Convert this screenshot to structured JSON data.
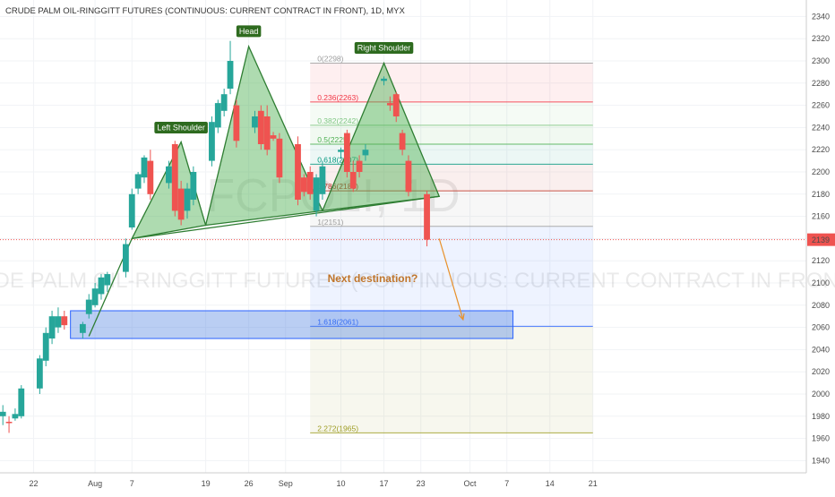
{
  "title": "CRUDE PALM OIL-RINGGITT FUTURES (CONTINUOUS: CURRENT CONTRACT IN FRONT), 1D, MYX",
  "watermark": {
    "symbol": "FCPO1!, 1D",
    "name": "CRUDE PALM OIL-RINGGITT FUTURES (CONTINUOUS: CURRENT CONTRACT IN FRONT)"
  },
  "annotations": {
    "head": "Head",
    "left_shoulder": "Left Shoulder",
    "right_shoulder": "Right Shoulder",
    "next_destination": "Next destination?"
  },
  "colors": {
    "up": "#26a69a",
    "down": "#ef5350",
    "pattern_fill": "#4caf50",
    "tag_bg": "#2e6b1f",
    "target_box": "#4a7ee0",
    "arrow": "#e8912a",
    "last_price_bg": "#ef5350"
  },
  "chart_data": {
    "type": "candlestick",
    "title": "CRUDE PALM OIL-RINGGITT FUTURES (CONTINUOUS: CURRENT CONTRACT IN FRONT), 1D, MYX",
    "symbol": "FCPO1!",
    "interval": "1D",
    "exchange": "MYX",
    "ylim": [
      1930,
      2350
    ],
    "y_ticks": [
      1940,
      1960,
      1980,
      2000,
      2020,
      2040,
      2060,
      2080,
      2100,
      2120,
      2140,
      2160,
      2180,
      2200,
      2220,
      2240,
      2260,
      2280,
      2300,
      2320,
      2340
    ],
    "x_ticks": [
      {
        "label": "22",
        "date": "2018-07-22"
      },
      {
        "label": "Aug",
        "date": "2018-08-01"
      },
      {
        "label": "7",
        "date": "2018-08-07"
      },
      {
        "label": "19",
        "date": "2018-08-19"
      },
      {
        "label": "26",
        "date": "2018-08-26"
      },
      {
        "label": "Sep",
        "date": "2018-09-01"
      },
      {
        "label": "10",
        "date": "2018-09-10"
      },
      {
        "label": "17",
        "date": "2018-09-17"
      },
      {
        "label": "23",
        "date": "2018-09-23"
      },
      {
        "label": "Oct",
        "date": "2018-10-01"
      },
      {
        "label": "7",
        "date": "2018-10-07"
      },
      {
        "label": "14",
        "date": "2018-10-14"
      },
      {
        "label": "21",
        "date": "2018-10-21"
      }
    ],
    "last_price": 2139,
    "candles": [
      {
        "date": "2018-07-17",
        "open": 1980,
        "high": 1990,
        "low": 1972,
        "close": 1984
      },
      {
        "date": "2018-07-18",
        "open": 1975,
        "high": 1980,
        "low": 1965,
        "close": 1974
      },
      {
        "date": "2018-07-19",
        "open": 1978,
        "high": 1987,
        "low": 1976,
        "close": 1982
      },
      {
        "date": "2018-07-20",
        "open": 1980,
        "high": 2008,
        "low": 1978,
        "close": 2005
      },
      {
        "date": "2018-07-23",
        "open": 2005,
        "high": 2035,
        "low": 2000,
        "close": 2032
      },
      {
        "date": "2018-07-24",
        "open": 2030,
        "high": 2060,
        "low": 2025,
        "close": 2055
      },
      {
        "date": "2018-07-25",
        "open": 2050,
        "high": 2075,
        "low": 2045,
        "close": 2070
      },
      {
        "date": "2018-07-26",
        "open": 2060,
        "high": 2078,
        "low": 2055,
        "close": 2070
      },
      {
        "date": "2018-07-27",
        "open": 2070,
        "high": 2075,
        "low": 2058,
        "close": 2062
      },
      {
        "date": "2018-07-30",
        "open": 2055,
        "high": 2065,
        "low": 2050,
        "close": 2063
      },
      {
        "date": "2018-07-31",
        "open": 2072,
        "high": 2090,
        "low": 2068,
        "close": 2085
      },
      {
        "date": "2018-08-01",
        "open": 2080,
        "high": 2100,
        "low": 2078,
        "close": 2095
      },
      {
        "date": "2018-08-02",
        "open": 2090,
        "high": 2108,
        "low": 2085,
        "close": 2105
      },
      {
        "date": "2018-08-03",
        "open": 2098,
        "high": 2110,
        "low": 2092,
        "close": 2108
      },
      {
        "date": "2018-08-06",
        "open": 2110,
        "high": 2140,
        "low": 2105,
        "close": 2135
      },
      {
        "date": "2018-08-07",
        "open": 2150,
        "high": 2185,
        "low": 2148,
        "close": 2180
      },
      {
        "date": "2018-08-08",
        "open": 2185,
        "high": 2200,
        "low": 2180,
        "close": 2198
      },
      {
        "date": "2018-08-09",
        "open": 2195,
        "high": 2215,
        "low": 2190,
        "close": 2213
      },
      {
        "date": "2018-08-10",
        "open": 2210,
        "high": 2220,
        "low": 2175,
        "close": 2180
      },
      {
        "date": "2018-08-13",
        "open": 2190,
        "high": 2210,
        "low": 2185,
        "close": 2205
      },
      {
        "date": "2018-08-14",
        "open": 2225,
        "high": 2228,
        "low": 2160,
        "close": 2165
      },
      {
        "date": "2018-08-15",
        "open": 2185,
        "high": 2192,
        "low": 2152,
        "close": 2157
      },
      {
        "date": "2018-08-16",
        "open": 2165,
        "high": 2190,
        "low": 2158,
        "close": 2185
      },
      {
        "date": "2018-08-17",
        "open": 2175,
        "high": 2205,
        "low": 2170,
        "close": 2200
      },
      {
        "date": "2018-08-20",
        "open": 2210,
        "high": 2250,
        "low": 2205,
        "close": 2245
      },
      {
        "date": "2018-08-21",
        "open": 2240,
        "high": 2265,
        "low": 2235,
        "close": 2262
      },
      {
        "date": "2018-08-22",
        "open": 2255,
        "high": 2275,
        "low": 2250,
        "close": 2270
      },
      {
        "date": "2018-08-23",
        "open": 2275,
        "high": 2318,
        "low": 2270,
        "close": 2300
      },
      {
        "date": "2018-08-24",
        "open": 2260,
        "high": 2265,
        "low": 2222,
        "close": 2228
      },
      {
        "date": "2018-08-27",
        "open": 2240,
        "high": 2255,
        "low": 2235,
        "close": 2250
      },
      {
        "date": "2018-08-28",
        "open": 2255,
        "high": 2260,
        "low": 2220,
        "close": 2225
      },
      {
        "date": "2018-08-29",
        "open": 2250,
        "high": 2260,
        "low": 2215,
        "close": 2220
      },
      {
        "date": "2018-08-30",
        "open": 2233,
        "high": 2236,
        "low": 2228,
        "close": 2230
      },
      {
        "date": "2018-08-31",
        "open": 2230,
        "high": 2235,
        "low": 2190,
        "close": 2195
      },
      {
        "date": "2018-09-03",
        "open": 2225,
        "high": 2232,
        "low": 2170,
        "close": 2175
      },
      {
        "date": "2018-09-04",
        "open": 2195,
        "high": 2198,
        "low": 2178,
        "close": 2182
      },
      {
        "date": "2018-09-05",
        "open": 2200,
        "high": 2205,
        "low": 2175,
        "close": 2180
      },
      {
        "date": "2018-09-06",
        "open": 2165,
        "high": 2198,
        "low": 2160,
        "close": 2195
      },
      {
        "date": "2018-09-07",
        "open": 2180,
        "high": 2210,
        "low": 2175,
        "close": 2205
      },
      {
        "date": "2018-09-10",
        "open": 2218,
        "high": 2222,
        "low": 2212,
        "close": 2220
      },
      {
        "date": "2018-09-11",
        "open": 2235,
        "high": 2238,
        "low": 2195,
        "close": 2200
      },
      {
        "date": "2018-09-12",
        "open": 2200,
        "high": 2210,
        "low": 2182,
        "close": 2185
      },
      {
        "date": "2018-09-13",
        "open": 2210,
        "high": 2215,
        "low": 2195,
        "close": 2200
      },
      {
        "date": "2018-09-14",
        "open": 2215,
        "high": 2225,
        "low": 2210,
        "close": 2220
      },
      {
        "date": "2018-09-17",
        "open": 2282,
        "high": 2286,
        "low": 2278,
        "close": 2284
      },
      {
        "date": "2018-09-18",
        "open": 2262,
        "high": 2268,
        "low": 2255,
        "close": 2260
      },
      {
        "date": "2018-09-19",
        "open": 2270,
        "high": 2272,
        "low": 2245,
        "close": 2250
      },
      {
        "date": "2018-09-20",
        "open": 2235,
        "high": 2238,
        "low": 2215,
        "close": 2220
      },
      {
        "date": "2018-09-21",
        "open": 2210,
        "high": 2215,
        "low": 2178,
        "close": 2182
      },
      {
        "date": "2018-09-24",
        "open": 2180,
        "high": 2183,
        "low": 2133,
        "close": 2139
      }
    ],
    "pattern": {
      "type": "head_and_shoulders",
      "points": [
        {
          "label": "start",
          "date": "2018-08-07",
          "price": 2140
        },
        {
          "label": "Left Shoulder",
          "date": "2018-08-15",
          "price": 2227
        },
        {
          "label": "trough",
          "date": "2018-08-19",
          "price": 2152
        },
        {
          "label": "Head",
          "date": "2018-08-26",
          "price": 2313
        },
        {
          "label": "trough",
          "date": "2018-09-07",
          "price": 2165
        },
        {
          "label": "Right Shoulder",
          "date": "2018-09-17",
          "price": 2298
        },
        {
          "label": "end",
          "date": "2018-09-26",
          "price": 2178
        }
      ],
      "neckline": [
        {
          "date": "2018-08-07",
          "price": 2140
        },
        {
          "date": "2018-09-26",
          "price": 2178
        }
      ],
      "trendline": [
        {
          "date": "2018-07-31",
          "price": 2052
        },
        {
          "date": "2018-08-07",
          "price": 2140
        }
      ]
    },
    "fibonacci": {
      "start_date": "2018-09-05",
      "end_date": "2018-10-21",
      "levels": [
        {
          "ratio": "0",
          "price": 2298,
          "label": "0(2298)",
          "color": "#9e9e9e"
        },
        {
          "ratio": "0.236",
          "price": 2263,
          "label": "0.236(2263)",
          "color": "#f23645"
        },
        {
          "ratio": "0.382",
          "price": 2242,
          "label": "0.382(2242)",
          "color": "#81c784"
        },
        {
          "ratio": "0.5",
          "price": 2225,
          "label": "0.5(2225)",
          "color": "#4caf50"
        },
        {
          "ratio": "0.618",
          "price": 2207,
          "label": "0.618(2207)",
          "color": "#089981"
        },
        {
          "ratio": "0.786",
          "price": 2183,
          "label": "0.786(2183)",
          "color": "#c0392b"
        },
        {
          "ratio": "1",
          "price": 2151,
          "label": "1(2151)",
          "color": "#9e9e9e"
        },
        {
          "ratio": "1.618",
          "price": 2061,
          "label": "1.618(2061)",
          "color": "#2962ff"
        },
        {
          "ratio": "2.272",
          "price": 1965,
          "label": "2.272(1965)",
          "color": "#9e9d24"
        }
      ]
    },
    "target_zone": {
      "start_date": "2018-07-28",
      "end_date": "2018-10-08",
      "top": 2075,
      "bottom": 2050
    },
    "projection_arrow": {
      "from_date": "2018-09-26",
      "from_price": 2140,
      "to_date": "2018-09-29",
      "to_price": 2067
    }
  }
}
